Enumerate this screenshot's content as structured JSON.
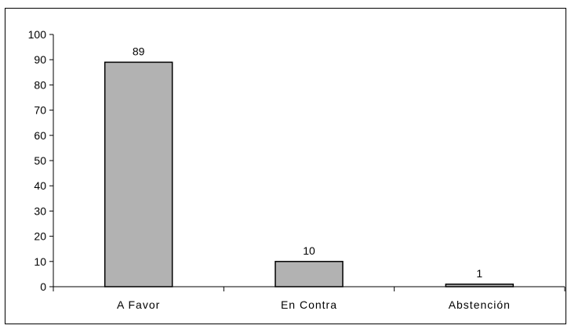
{
  "chart_data": {
    "type": "bar",
    "title": "",
    "xlabel": "",
    "ylabel": "",
    "categories": [
      "A Favor",
      "En Contra",
      "Abstención"
    ],
    "values": [
      89,
      10,
      1
    ],
    "data_labels": [
      "89",
      "10",
      "1"
    ],
    "ylim": [
      0,
      100
    ],
    "y_ticks": [
      0,
      10,
      20,
      30,
      40,
      50,
      60,
      70,
      80,
      90,
      100
    ],
    "y_tick_labels": [
      "0",
      "10",
      "20",
      "30",
      "40",
      "50",
      "60",
      "70",
      "80",
      "90",
      "100"
    ],
    "grid": false,
    "legend": "none",
    "colors": {
      "bar_fill": "#b2b2b2",
      "bar_stroke": "#000000",
      "axis": "#000000"
    }
  }
}
